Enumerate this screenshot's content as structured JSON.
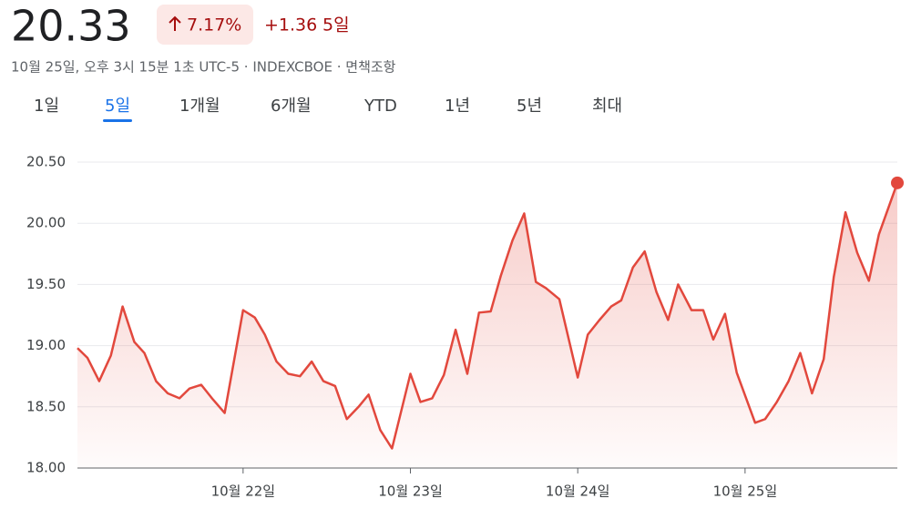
{
  "header": {
    "price": "20.33",
    "change_percent": "7.17%",
    "change_abs": "+1.36",
    "period": "5일",
    "subtitle": "10월 25일, 오후 3시 15분 1초 UTC-5 · INDEXCBOE · 면책조항"
  },
  "tabs": {
    "items": [
      "1일",
      "5일",
      "1개월",
      "6개월",
      "YTD",
      "1년",
      "5년",
      "최대"
    ],
    "active": 1
  },
  "chart_data": {
    "type": "line",
    "area": true,
    "end_marker": true,
    "grid": true,
    "x": [
      21.01,
      21.07,
      21.14,
      21.21,
      21.28,
      21.35,
      21.41,
      21.48,
      21.55,
      21.62,
      21.68,
      21.75,
      21.82,
      21.89,
      22.0,
      22.07,
      22.13,
      22.2,
      22.27,
      22.34,
      22.41,
      22.48,
      22.55,
      22.62,
      22.69,
      22.75,
      22.82,
      22.89,
      23.0,
      23.06,
      23.13,
      23.2,
      23.27,
      23.34,
      23.41,
      23.48,
      23.54,
      23.61,
      23.68,
      23.75,
      23.81,
      23.89,
      24.0,
      24.06,
      24.13,
      24.2,
      24.26,
      24.33,
      24.4,
      24.47,
      24.54,
      24.6,
      24.68,
      24.75,
      24.81,
      24.88,
      24.95,
      25.06,
      25.12,
      25.19,
      25.26,
      25.33,
      25.4,
      25.47,
      25.53,
      25.6,
      25.67,
      25.74,
      25.8,
      25.91
    ],
    "series": [
      {
        "name": "INDEXCBOE",
        "color": "#e2483d",
        "values": [
          18.98,
          18.9,
          18.71,
          18.92,
          19.32,
          19.03,
          18.94,
          18.71,
          18.61,
          18.57,
          18.65,
          18.68,
          18.56,
          18.45,
          19.29,
          19.23,
          19.09,
          18.87,
          18.77,
          18.75,
          18.87,
          18.71,
          18.67,
          18.4,
          18.5,
          18.6,
          18.31,
          18.16,
          18.77,
          18.54,
          18.57,
          18.76,
          19.13,
          18.77,
          19.27,
          19.28,
          19.57,
          19.86,
          20.08,
          19.52,
          19.47,
          19.38,
          18.74,
          19.09,
          19.21,
          19.32,
          19.37,
          19.64,
          19.77,
          19.44,
          19.21,
          19.5,
          19.29,
          19.29,
          19.05,
          19.26,
          18.78,
          18.37,
          18.4,
          18.54,
          18.71,
          18.94,
          18.61,
          18.89,
          19.56,
          20.09,
          19.76,
          19.53,
          19.91,
          20.33
        ]
      }
    ],
    "xlim": [
      21.01,
      25.91
    ],
    "xticks": [
      {
        "value": 22,
        "label": "10월 22일"
      },
      {
        "value": 23,
        "label": "10월 23일"
      },
      {
        "value": 24,
        "label": "10월 24일"
      },
      {
        "value": 25,
        "label": "10월 25일"
      }
    ],
    "ylim": [
      18,
      20.5
    ],
    "yticks": [
      {
        "value": 18,
        "label": "18.00"
      },
      {
        "value": 18.5,
        "label": "18.50"
      },
      {
        "value": 19,
        "label": "19.00"
      },
      {
        "value": 19.5,
        "label": "19.50"
      },
      {
        "value": 20,
        "label": "20.00"
      },
      {
        "value": 20.5,
        "label": "20.50"
      }
    ]
  }
}
